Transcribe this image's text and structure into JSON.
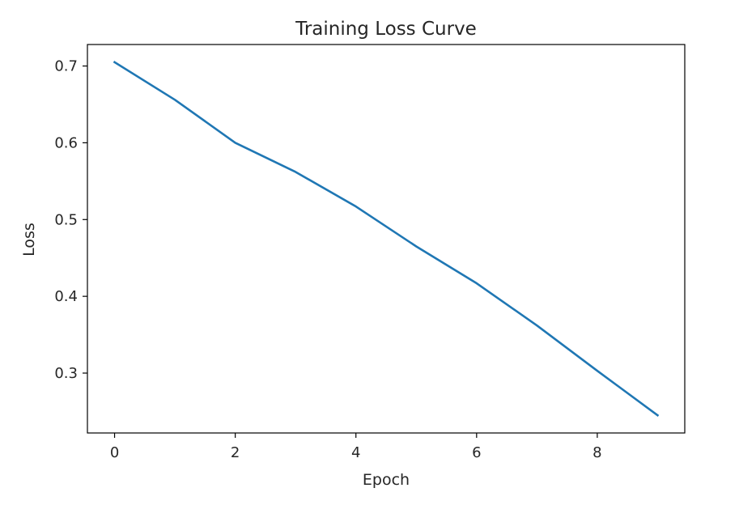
{
  "chart_data": {
    "type": "line",
    "title": "Training Loss Curve",
    "xlabel": "Epoch",
    "ylabel": "Loss",
    "x": [
      0,
      1,
      2,
      3,
      4,
      5,
      6,
      7,
      8,
      9
    ],
    "series": [
      {
        "values": [
          0.705,
          0.656,
          0.6,
          0.562,
          0.517,
          0.465,
          0.417,
          0.362,
          0.303,
          0.245
        ],
        "color": "#1f77b4"
      }
    ],
    "xlim": [
      -0.45,
      9.45
    ],
    "ylim": [
      0.222,
      0.728
    ],
    "xticks": [
      0,
      2,
      4,
      6,
      8
    ],
    "xtick_labels": [
      "0",
      "2",
      "4",
      "6",
      "8"
    ],
    "yticks": [
      0.3,
      0.4,
      0.5,
      0.6,
      0.7
    ],
    "ytick_labels": [
      "0.3",
      "0.4",
      "0.5",
      "0.6",
      "0.7"
    ],
    "grid": false,
    "legend": "none"
  }
}
